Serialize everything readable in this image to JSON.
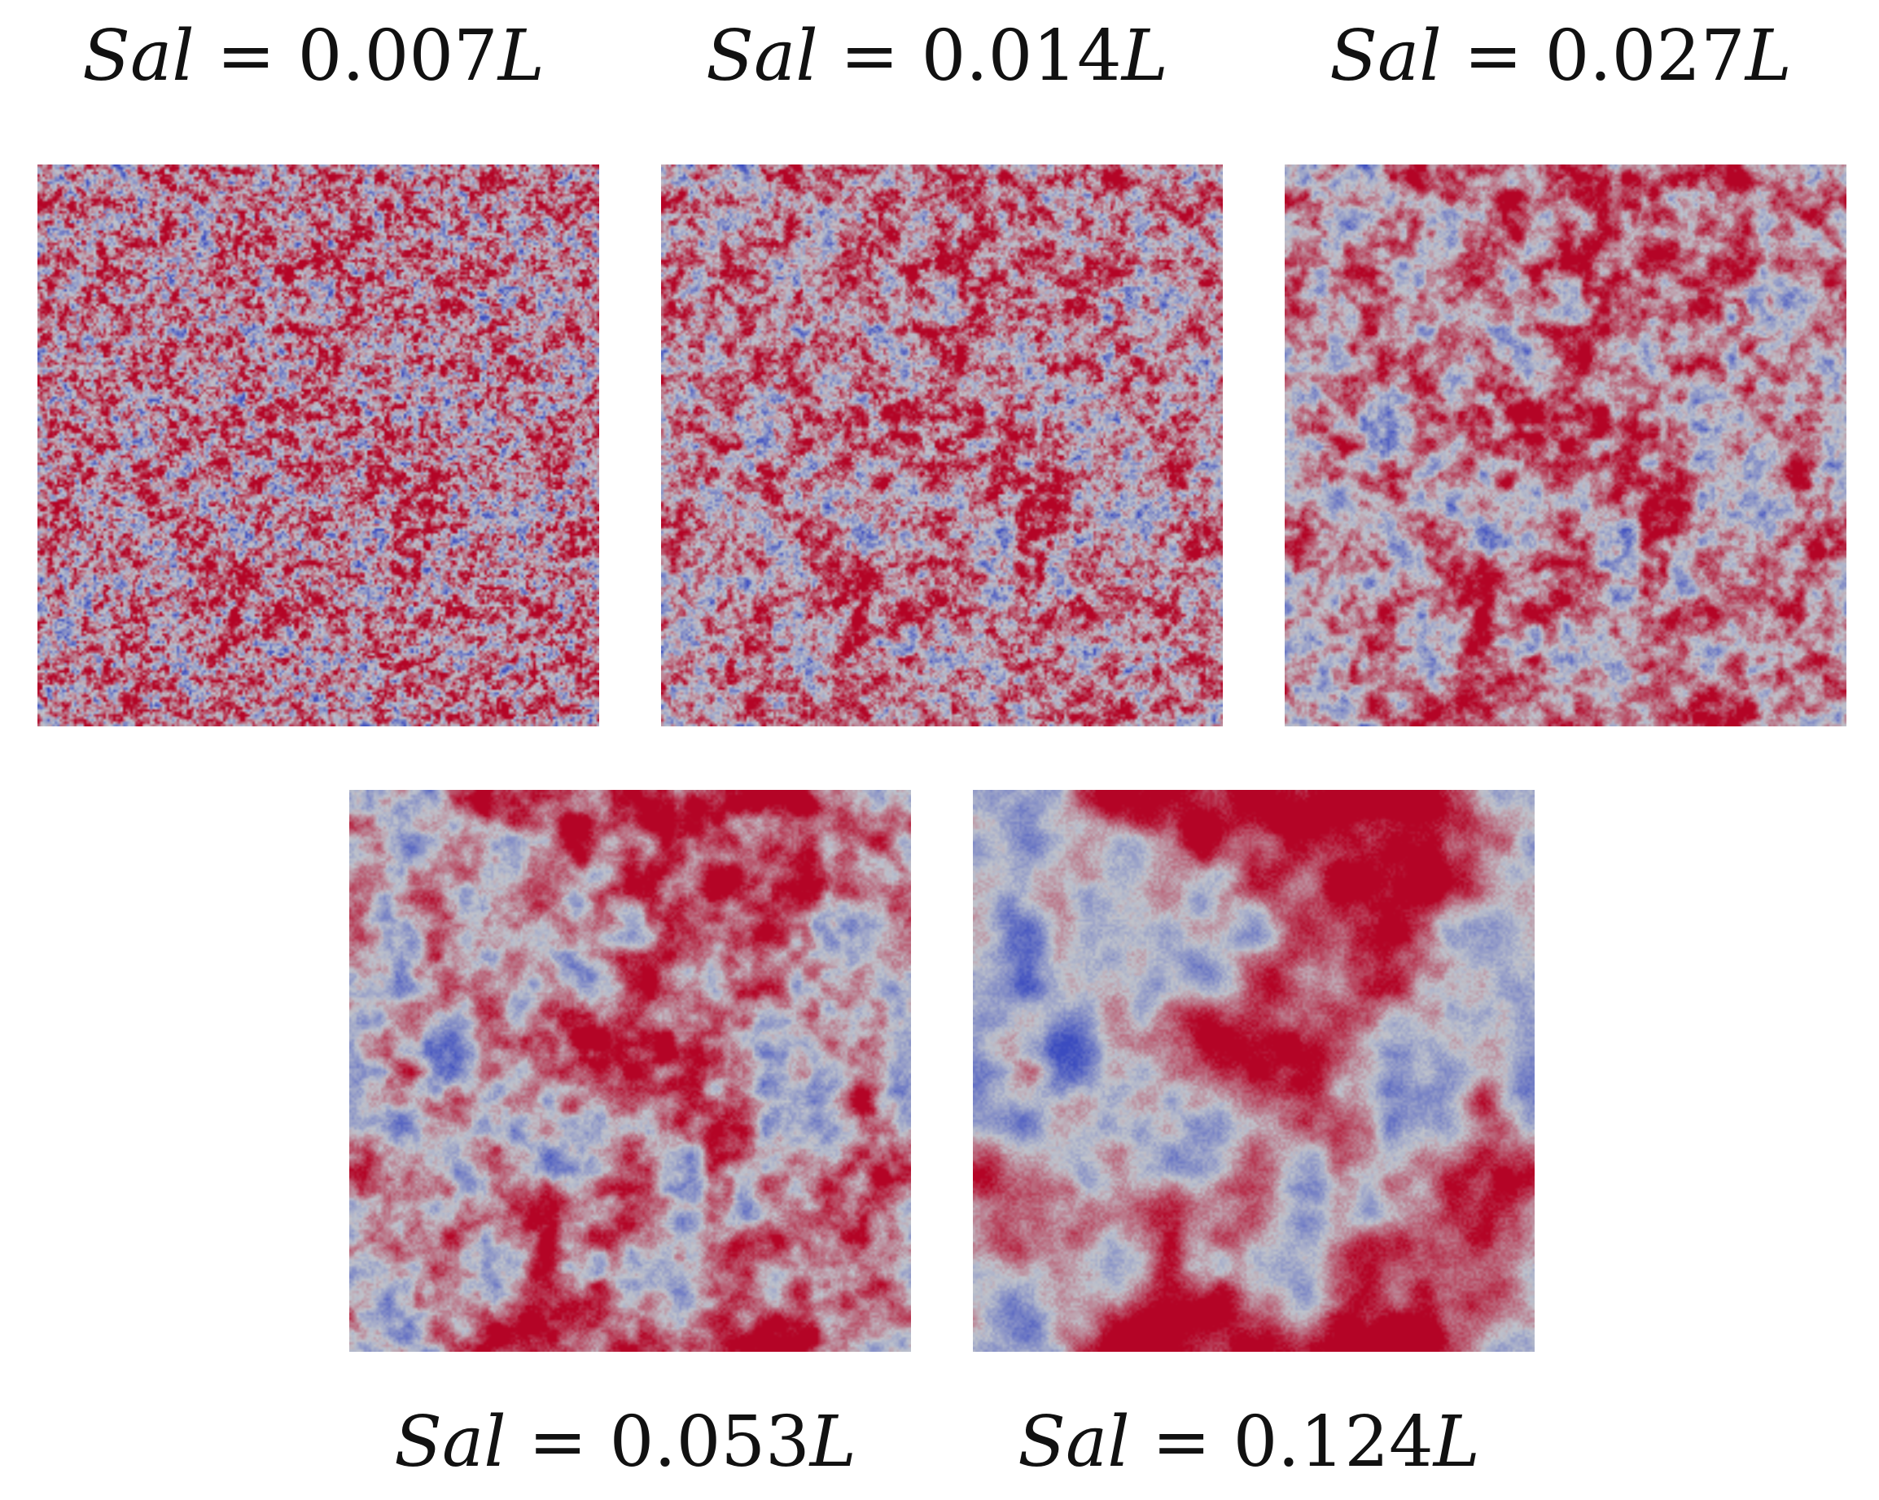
{
  "figure": {
    "panels": [
      {
        "symbol": "Sal",
        "equals": "=",
        "value": "0.007",
        "unit": "L",
        "correlation_length": 0.007
      },
      {
        "symbol": "Sal",
        "equals": "=",
        "value": "0.014",
        "unit": "L",
        "correlation_length": 0.014
      },
      {
        "symbol": "Sal",
        "equals": "=",
        "value": "0.027",
        "unit": "L",
        "correlation_length": 0.027
      },
      {
        "symbol": "Sal",
        "equals": "=",
        "value": "0.053",
        "unit": "L",
        "correlation_length": 0.053
      },
      {
        "symbol": "Sal",
        "equals": "=",
        "value": "0.124",
        "unit": "L",
        "correlation_length": 0.124
      }
    ],
    "colormap": {
      "low": "#3b4cc0",
      "mid": "#c0c4cc",
      "high": "#b40426",
      "base": "#c9604b"
    }
  }
}
